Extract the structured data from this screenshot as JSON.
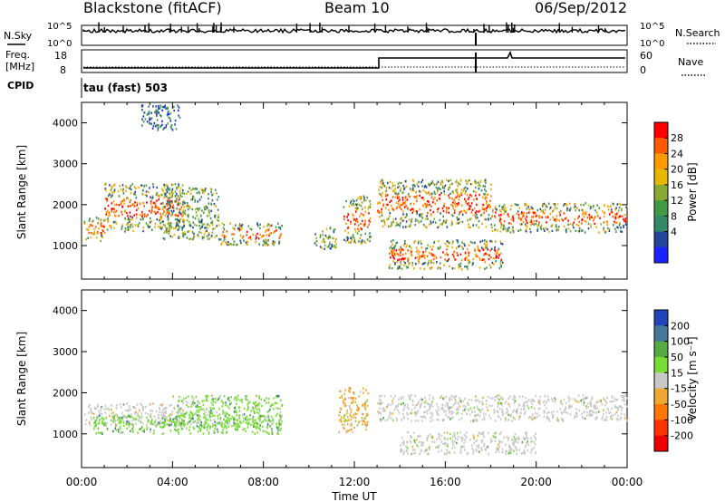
{
  "header": {
    "station": "Blackstone (fitACF)",
    "beam": "Beam 10",
    "date": "06/Sep/2012",
    "nsky_label": "N.Sky",
    "nsearch_label": "N.Search",
    "freq_label_1": "Freq.",
    "freq_label_2": "[MHz]",
    "nave_label": "Nave",
    "cpid_label": "CPID",
    "cpid_value": "tau (fast) 503",
    "noise_ticks": [
      "10^5",
      "10^0"
    ],
    "freq_ticks": [
      "18",
      "8"
    ],
    "nave_ticks": [
      "60",
      "0"
    ]
  },
  "chart_data": [
    {
      "type": "heatmap",
      "name": "power",
      "ylabel": "Slant Range [km]",
      "xlabel": "Time UT",
      "xlim": [
        0,
        24
      ],
      "ylim": [
        180,
        4500
      ],
      "x_ticks": [
        "00:00",
        "04:00",
        "08:00",
        "12:00",
        "16:00",
        "20:00",
        "00:00"
      ],
      "y_ticks": [
        1000,
        2000,
        3000,
        4000
      ],
      "colorbar": {
        "label": "Power [dB]",
        "ticks": [
          "28",
          "24",
          "20",
          "16",
          "12",
          "8",
          "4"
        ],
        "colors": [
          "#ff0000",
          "#ff5a00",
          "#ff9900",
          "#e6b800",
          "#88aa33",
          "#449944",
          "#338866",
          "#224499",
          "#1a22ff"
        ]
      },
      "bands": [
        {
          "t_start": 0.1,
          "t_end": 1.0,
          "r_low": 1100,
          "r_high": 1800,
          "level": "strong"
        },
        {
          "t_start": 1.0,
          "t_end": 4.5,
          "r_low": 1300,
          "r_high": 2600,
          "level": "strong"
        },
        {
          "t_start": 3.5,
          "t_end": 6.0,
          "r_low": 1100,
          "r_high": 2500,
          "level": "medium"
        },
        {
          "t_start": 6.0,
          "t_end": 8.8,
          "r_low": 1000,
          "r_high": 1600,
          "level": "strong"
        },
        {
          "t_start": 10.2,
          "t_end": 11.2,
          "r_low": 900,
          "r_high": 1500,
          "level": "medium"
        },
        {
          "t_start": 11.5,
          "t_end": 12.7,
          "r_low": 1000,
          "r_high": 2300,
          "level": "strong"
        },
        {
          "t_start": 13.0,
          "t_end": 18.0,
          "r_low": 1400,
          "r_high": 2700,
          "level": "strong"
        },
        {
          "t_start": 13.5,
          "t_end": 18.5,
          "r_low": 400,
          "r_high": 1200,
          "level": "strong"
        },
        {
          "t_start": 18.0,
          "t_end": 24.0,
          "r_low": 1300,
          "r_high": 2100,
          "level": "strong"
        },
        {
          "t_start": 2.6,
          "t_end": 4.3,
          "r_low": 3800,
          "r_high": 4500,
          "level": "weak"
        }
      ]
    },
    {
      "type": "heatmap",
      "name": "velocity",
      "ylabel": "Slant Range [km]",
      "xlabel": "Time UT",
      "xlim": [
        0,
        24
      ],
      "ylim": [
        180,
        4500
      ],
      "x_ticks": [
        "00:00",
        "04:00",
        "08:00",
        "12:00",
        "16:00",
        "20:00",
        "00:00"
      ],
      "y_ticks": [
        1000,
        2000,
        3000,
        4000
      ],
      "colorbar": {
        "label": "Velocity [m s⁻¹]",
        "ticks": [
          "200",
          "100",
          "50",
          "15",
          "-15",
          "-50",
          "-100",
          "-200"
        ],
        "colors": [
          "#2244bb",
          "#447799",
          "#55aa44",
          "#77dd33",
          "#c8c8c8",
          "#f0a830",
          "#ff7700",
          "#ff3300",
          "#ee0000"
        ]
      },
      "bands": [
        {
          "t_start": 0.1,
          "t_end": 4.5,
          "r_low": 1200,
          "r_high": 1800,
          "level": "gray"
        },
        {
          "t_start": 0.5,
          "t_end": 8.8,
          "r_low": 1000,
          "r_high": 1500,
          "level": "green"
        },
        {
          "t_start": 4.0,
          "t_end": 8.8,
          "r_low": 1100,
          "r_high": 2000,
          "level": "green"
        },
        {
          "t_start": 11.3,
          "t_end": 12.6,
          "r_low": 1000,
          "r_high": 2200,
          "level": "orange"
        },
        {
          "t_start": 13.0,
          "t_end": 24.0,
          "r_low": 1300,
          "r_high": 2000,
          "level": "gray"
        },
        {
          "t_start": 14.0,
          "t_end": 20.0,
          "r_low": 500,
          "r_high": 1100,
          "level": "gray"
        }
      ]
    }
  ]
}
